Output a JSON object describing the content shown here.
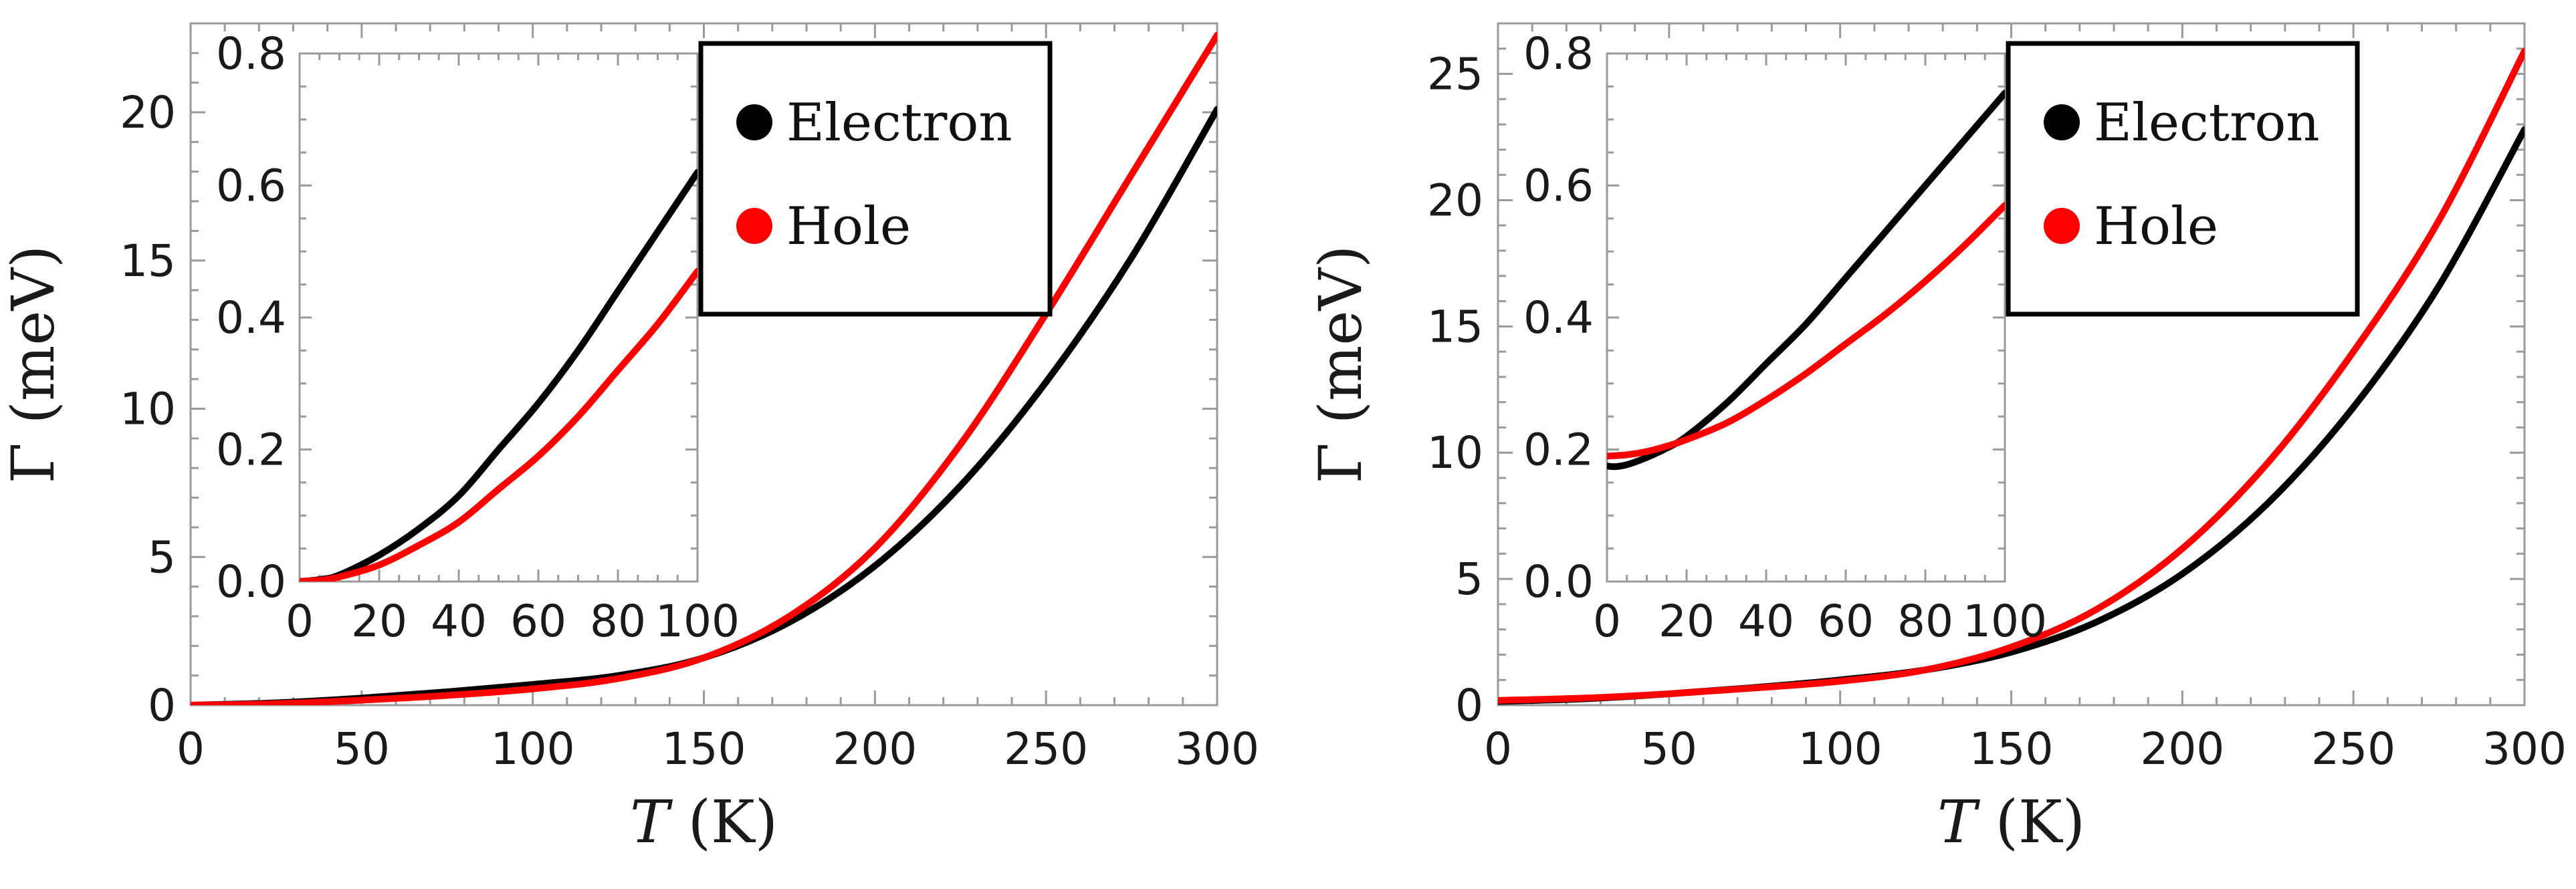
{
  "chart_data": [
    {
      "type": "line",
      "panel": "left",
      "xlabel": "T (K)",
      "ylabel": "Γ (meV)",
      "xlim": [
        0,
        300
      ],
      "ylim": [
        0,
        23
      ],
      "xticks": [
        0,
        50,
        100,
        150,
        200,
        250,
        300
      ],
      "yticks": [
        0,
        5,
        10,
        15,
        20
      ],
      "series": [
        {
          "name": "Electron",
          "color": "#000000",
          "x": [
            0,
            25,
            50,
            75,
            100,
            125,
            150,
            175,
            200,
            225,
            250,
            275,
            300
          ],
          "y": [
            0,
            0.08,
            0.24,
            0.45,
            0.7,
            1.0,
            1.6,
            2.8,
            4.7,
            7.4,
            10.9,
            15.1,
            20.1
          ]
        },
        {
          "name": "Hole",
          "color": "#ff0000",
          "x": [
            0,
            25,
            50,
            75,
            100,
            125,
            150,
            175,
            200,
            225,
            250,
            275,
            300
          ],
          "y": [
            0,
            0.05,
            0.17,
            0.33,
            0.55,
            0.9,
            1.6,
            3.0,
            5.3,
            8.8,
            13.2,
            17.9,
            22.6
          ]
        }
      ],
      "legend": [
        "Electron",
        "Hole"
      ],
      "inset": {
        "xlim": [
          0,
          100
        ],
        "ylim": [
          0,
          0.8
        ],
        "xticks": [
          0,
          20,
          40,
          60,
          80,
          100
        ],
        "yticks": [
          0.0,
          0.2,
          0.4,
          0.6,
          0.8
        ],
        "series": [
          {
            "name": "Electron",
            "color": "#000000",
            "x": [
              0,
              5,
              10,
              20,
              30,
              40,
              50,
              60,
              70,
              80,
              90,
              100
            ],
            "y": [
              0,
              0.003,
              0.01,
              0.04,
              0.08,
              0.13,
              0.2,
              0.27,
              0.35,
              0.44,
              0.53,
              0.62
            ]
          },
          {
            "name": "Hole",
            "color": "#ff0000",
            "x": [
              0,
              5,
              10,
              20,
              30,
              40,
              50,
              60,
              70,
              80,
              90,
              100
            ],
            "y": [
              0,
              0.002,
              0.007,
              0.025,
              0.055,
              0.09,
              0.14,
              0.19,
              0.25,
              0.32,
              0.39,
              0.47
            ]
          }
        ]
      }
    },
    {
      "type": "line",
      "panel": "right",
      "xlabel": "T (K)",
      "ylabel": "Γ (meV)",
      "xlim": [
        0,
        300
      ],
      "ylim": [
        0,
        27
      ],
      "xticks": [
        0,
        50,
        100,
        150,
        200,
        250,
        300
      ],
      "yticks": [
        0,
        5,
        10,
        15,
        20,
        25
      ],
      "series": [
        {
          "name": "Electron",
          "color": "#000000",
          "x": [
            0,
            25,
            50,
            75,
            100,
            125,
            150,
            175,
            200,
            225,
            250,
            275,
            300
          ],
          "y": [
            0.15,
            0.25,
            0.45,
            0.7,
            1.0,
            1.4,
            2.1,
            3.3,
            5.2,
            8.0,
            11.8,
            16.6,
            22.8
          ]
        },
        {
          "name": "Hole",
          "color": "#ff0000",
          "x": [
            0,
            25,
            50,
            75,
            100,
            125,
            150,
            175,
            200,
            225,
            250,
            275,
            300
          ],
          "y": [
            0.19,
            0.28,
            0.45,
            0.68,
            0.95,
            1.4,
            2.3,
            3.8,
            6.2,
            9.6,
            14.0,
            19.2,
            25.9
          ]
        }
      ],
      "legend": [
        "Electron",
        "Hole"
      ],
      "inset": {
        "xlim": [
          0,
          100
        ],
        "ylim": [
          0,
          0.8
        ],
        "xticks": [
          0,
          20,
          40,
          60,
          80,
          100
        ],
        "yticks": [
          0.0,
          0.2,
          0.4,
          0.6,
          0.8
        ],
        "series": [
          {
            "name": "Electron",
            "color": "#000000",
            "x": [
              0,
              2,
              5,
              10,
              15,
              20,
              30,
              40,
              50,
              60,
              70,
              80,
              90,
              100
            ],
            "y": [
              0.175,
              0.174,
              0.177,
              0.188,
              0.202,
              0.22,
              0.27,
              0.33,
              0.39,
              0.46,
              0.53,
              0.6,
              0.67,
              0.74
            ]
          },
          {
            "name": "Hole",
            "color": "#ff0000",
            "x": [
              0,
              5,
              10,
              15,
              20,
              30,
              40,
              50,
              60,
              70,
              80,
              90,
              100
            ],
            "y": [
              0.19,
              0.192,
              0.197,
              0.205,
              0.215,
              0.24,
              0.275,
              0.315,
              0.36,
              0.405,
              0.455,
              0.51,
              0.57
            ]
          }
        ]
      }
    }
  ]
}
